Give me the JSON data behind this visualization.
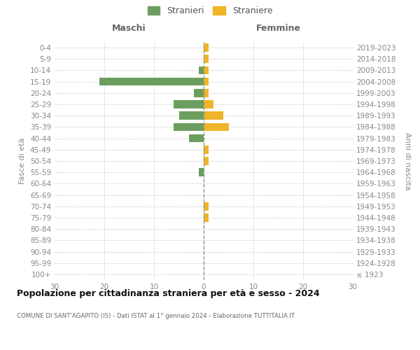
{
  "age_groups": [
    "100+",
    "95-99",
    "90-94",
    "85-89",
    "80-84",
    "75-79",
    "70-74",
    "65-69",
    "60-64",
    "55-59",
    "50-54",
    "45-49",
    "40-44",
    "35-39",
    "30-34",
    "25-29",
    "20-24",
    "15-19",
    "10-14",
    "5-9",
    "0-4"
  ],
  "birth_years": [
    "≤ 1923",
    "1924-1928",
    "1929-1933",
    "1934-1938",
    "1939-1943",
    "1944-1948",
    "1949-1953",
    "1954-1958",
    "1959-1963",
    "1964-1968",
    "1969-1973",
    "1974-1978",
    "1979-1983",
    "1984-1988",
    "1989-1993",
    "1994-1998",
    "1999-2003",
    "2004-2008",
    "2009-2013",
    "2014-2018",
    "2019-2023"
  ],
  "maschi": [
    0,
    0,
    0,
    0,
    0,
    0,
    0,
    0,
    0,
    1,
    0,
    0,
    3,
    6,
    5,
    6,
    2,
    21,
    1,
    0,
    0
  ],
  "femmine": [
    0,
    0,
    0,
    0,
    0,
    1,
    1,
    0,
    0,
    0,
    1,
    1,
    0,
    5,
    4,
    2,
    1,
    1,
    1,
    1,
    1
  ],
  "maschi_color": "#6B9E5E",
  "femmine_color": "#F0B429",
  "legend_maschi": "Stranieri",
  "legend_femmine": "Straniere",
  "title_maschi": "Maschi",
  "title_femmine": "Femmine",
  "ylabel_left": "Fasce di età",
  "ylabel_right": "Anni di nascita",
  "xlim": 30,
  "title": "Popolazione per cittadinanza straniera per età e sesso - 2024",
  "subtitle": "COMUNE DI SANT'AGAPITO (IS) - Dati ISTAT al 1° gennaio 2024 - Elaborazione TUTTITALIA.IT",
  "background_color": "#ffffff",
  "grid_color": "#cccccc",
  "label_color": "#888888",
  "center_line_color": "#aaaaaa"
}
